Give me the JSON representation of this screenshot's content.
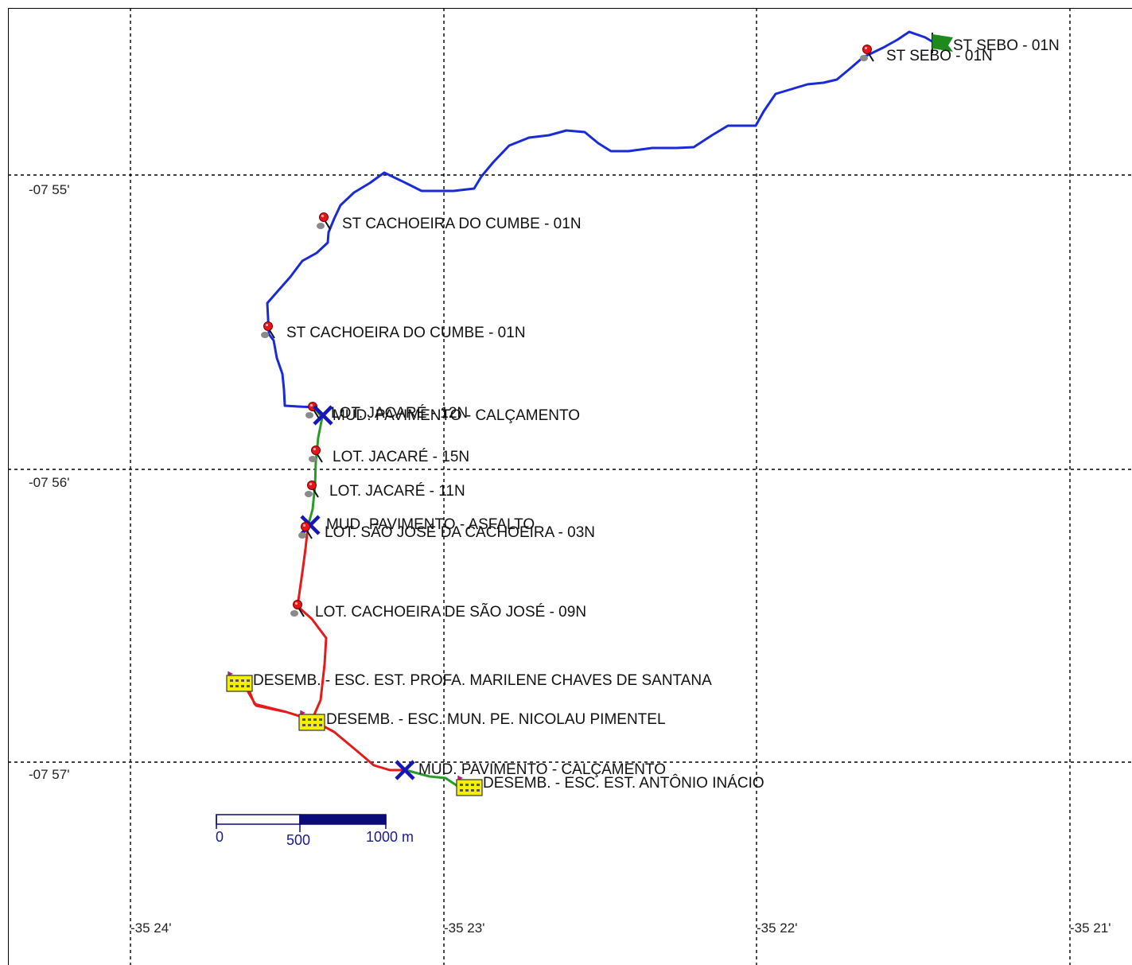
{
  "grid": {
    "lat_labels": [
      "-07 55'",
      "-07 56'",
      "-07 57'"
    ],
    "lon_labels": [
      "-35 24'",
      "-35 23'",
      "-35 22'",
      "-35 21'"
    ]
  },
  "routes": [
    {
      "name": "",
      "color": "#1a2bd6"
    },
    {
      "name": "",
      "color": "#2a9a2a"
    },
    {
      "name": "",
      "color": "#e61a1a"
    },
    {
      "name": "",
      "color": "#2a9a2a"
    }
  ],
  "waypoints": {
    "st_sebo_end": "ST SEBO - 01N",
    "st_sebo": "ST SEBO - 01N",
    "cachoeira_cumbe_1": "ST CACHOEIRA DO CUMBE - 01N",
    "cachoeira_cumbe_2": "ST CACHOEIRA DO CUMBE - 01N",
    "lot_jacare_12n": "LOT. JACARÉ - 12N",
    "mud_calcamento_1": "MUD. PAVIMENTO - CALÇAMENTO",
    "lot_jacare_15n": "LOT. JACARÉ - 15N",
    "lot_jacare_11n": "LOT. JACARÉ - 11N",
    "mud_asfalto": "MUD. PAVIMENTO - ASFALTO",
    "lot_sao_jose": "LOT. SÃO JOSÉ DA CACHOEIRA - 03N",
    "lot_cachoeira_sao_jose": "LOT. CACHOEIRA DE SÃO JOSÉ - 09N",
    "desemb_marilene": "DESEMB. - ESC. EST. PROFA. MARILENE CHAVES DE SANTANA",
    "desemb_nicolau": "DESEMB. - ESC. MUN. PE. NICOLAU PIMENTEL",
    "mud_calcamento_2": "MUD. PAVIMENTO - CALÇAMENTO",
    "desemb_antonio": "DESEMB. - ESC. EST. ANTÔNIO INÁCIO"
  },
  "scale_bar": {
    "labels": [
      "0",
      "500",
      "1000 m"
    ],
    "colors": {
      "light": "#ffffff",
      "dark": "#0a0a78"
    }
  },
  "icons": {
    "stop": "red-pin-icon",
    "pavement_change": "blue-x-icon",
    "school_stop": "school-building-icon",
    "finish": "green-flag-icon"
  }
}
